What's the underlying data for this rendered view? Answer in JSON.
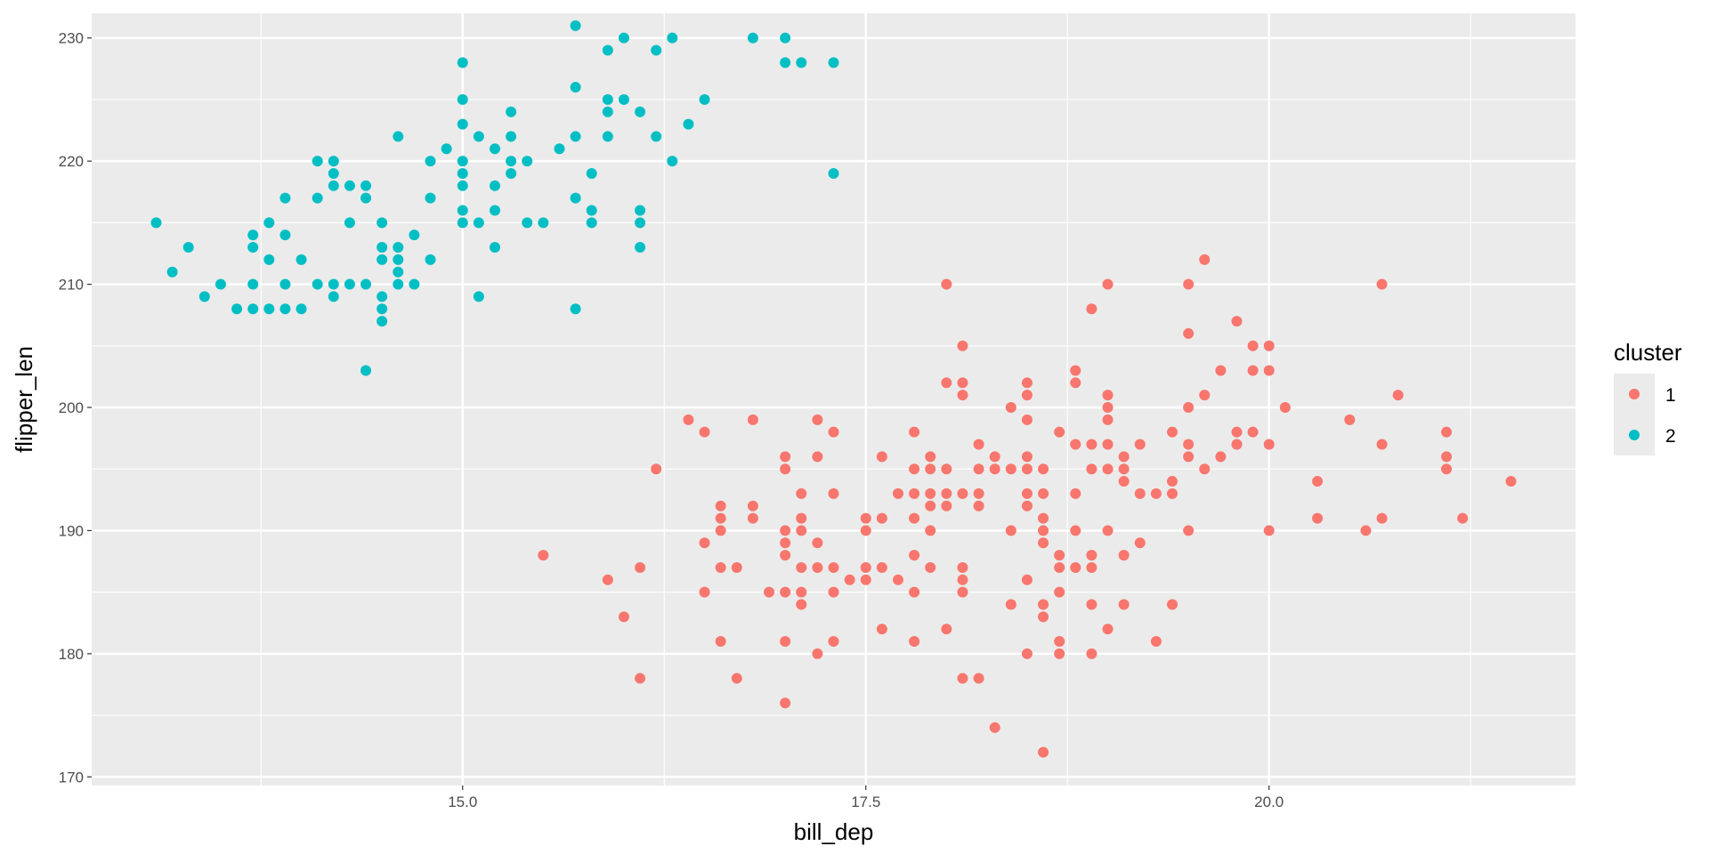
{
  "chart_data": {
    "type": "scatter",
    "title": "",
    "xlabel": "bill_dep",
    "ylabel": "flipper_len",
    "xlim": [
      12.7,
      21.9
    ],
    "ylim": [
      169.3,
      232
    ],
    "x_ticks": [
      15.0,
      17.5,
      20.0
    ],
    "x_tick_labels": [
      "15.0",
      "17.5",
      "20.0"
    ],
    "y_ticks": [
      170,
      180,
      190,
      200,
      210,
      220,
      230
    ],
    "y_tick_labels": [
      "170",
      "180",
      "190",
      "200",
      "210",
      "220",
      "230"
    ],
    "grid": true,
    "legend": {
      "title": "cluster",
      "position": "right"
    },
    "series": [
      {
        "name": "1",
        "color": "#F8766D",
        "points": [
          [
            15.5,
            188
          ],
          [
            15.9,
            186
          ],
          [
            16.0,
            183
          ],
          [
            16.1,
            187
          ],
          [
            16.1,
            178
          ],
          [
            16.2,
            195
          ],
          [
            16.4,
            199
          ],
          [
            16.5,
            198
          ],
          [
            16.5,
            189
          ],
          [
            16.5,
            185
          ],
          [
            16.6,
            192
          ],
          [
            16.6,
            191
          ],
          [
            16.6,
            190
          ],
          [
            16.6,
            187
          ],
          [
            16.6,
            181
          ],
          [
            16.7,
            178
          ],
          [
            16.7,
            187
          ],
          [
            16.8,
            199
          ],
          [
            16.8,
            192
          ],
          [
            16.8,
            191
          ],
          [
            16.9,
            185
          ],
          [
            17.0,
            196
          ],
          [
            17.0,
            195
          ],
          [
            17.0,
            190
          ],
          [
            17.0,
            189
          ],
          [
            17.0,
            188
          ],
          [
            17.0,
            185
          ],
          [
            17.0,
            181
          ],
          [
            17.0,
            176
          ],
          [
            17.1,
            193
          ],
          [
            17.1,
            191
          ],
          [
            17.1,
            190
          ],
          [
            17.1,
            187
          ],
          [
            17.1,
            185
          ],
          [
            17.1,
            184
          ],
          [
            17.2,
            199
          ],
          [
            17.2,
            196
          ],
          [
            17.2,
            189
          ],
          [
            17.2,
            187
          ],
          [
            17.2,
            180
          ],
          [
            17.3,
            198
          ],
          [
            17.3,
            193
          ],
          [
            17.3,
            187
          ],
          [
            17.3,
            185
          ],
          [
            17.3,
            181
          ],
          [
            17.4,
            186
          ],
          [
            17.5,
            191
          ],
          [
            17.5,
            190
          ],
          [
            17.5,
            187
          ],
          [
            17.5,
            186
          ],
          [
            17.6,
            196
          ],
          [
            17.6,
            191
          ],
          [
            17.6,
            187
          ],
          [
            17.6,
            182
          ],
          [
            17.7,
            193
          ],
          [
            17.7,
            186
          ],
          [
            17.8,
            198
          ],
          [
            17.8,
            195
          ],
          [
            17.8,
            193
          ],
          [
            17.8,
            191
          ],
          [
            17.8,
            188
          ],
          [
            17.8,
            185
          ],
          [
            17.8,
            181
          ],
          [
            17.9,
            196
          ],
          [
            17.9,
            195
          ],
          [
            17.9,
            193
          ],
          [
            17.9,
            192
          ],
          [
            17.9,
            190
          ],
          [
            17.9,
            187
          ],
          [
            18.0,
            210
          ],
          [
            18.0,
            202
          ],
          [
            18.0,
            195
          ],
          [
            18.0,
            193
          ],
          [
            18.0,
            192
          ],
          [
            18.0,
            182
          ],
          [
            18.1,
            205
          ],
          [
            18.1,
            202
          ],
          [
            18.1,
            201
          ],
          [
            18.1,
            193
          ],
          [
            18.1,
            187
          ],
          [
            18.1,
            186
          ],
          [
            18.1,
            185
          ],
          [
            18.1,
            178
          ],
          [
            18.2,
            197
          ],
          [
            18.2,
            195
          ],
          [
            18.2,
            193
          ],
          [
            18.2,
            192
          ],
          [
            18.2,
            178
          ],
          [
            18.3,
            196
          ],
          [
            18.3,
            195
          ],
          [
            18.3,
            174
          ],
          [
            18.4,
            200
          ],
          [
            18.4,
            195
          ],
          [
            18.4,
            190
          ],
          [
            18.4,
            184
          ],
          [
            18.5,
            202
          ],
          [
            18.5,
            201
          ],
          [
            18.5,
            199
          ],
          [
            18.5,
            196
          ],
          [
            18.5,
            195
          ],
          [
            18.5,
            193
          ],
          [
            18.5,
            192
          ],
          [
            18.5,
            186
          ],
          [
            18.5,
            180
          ],
          [
            18.6,
            195
          ],
          [
            18.6,
            193
          ],
          [
            18.6,
            191
          ],
          [
            18.6,
            190
          ],
          [
            18.6,
            189
          ],
          [
            18.6,
            184
          ],
          [
            18.6,
            183
          ],
          [
            18.6,
            172
          ],
          [
            18.7,
            198
          ],
          [
            18.7,
            188
          ],
          [
            18.7,
            187
          ],
          [
            18.7,
            185
          ],
          [
            18.7,
            181
          ],
          [
            18.7,
            180
          ],
          [
            18.8,
            203
          ],
          [
            18.8,
            202
          ],
          [
            18.8,
            197
          ],
          [
            18.8,
            193
          ],
          [
            18.8,
            190
          ],
          [
            18.8,
            187
          ],
          [
            18.9,
            208
          ],
          [
            18.9,
            197
          ],
          [
            18.9,
            195
          ],
          [
            18.9,
            188
          ],
          [
            18.9,
            187
          ],
          [
            18.9,
            184
          ],
          [
            18.9,
            180
          ],
          [
            19.0,
            210
          ],
          [
            19.0,
            201
          ],
          [
            19.0,
            200
          ],
          [
            19.0,
            199
          ],
          [
            19.0,
            197
          ],
          [
            19.0,
            195
          ],
          [
            19.0,
            190
          ],
          [
            19.0,
            182
          ],
          [
            19.1,
            196
          ],
          [
            19.1,
            195
          ],
          [
            19.1,
            194
          ],
          [
            19.1,
            188
          ],
          [
            19.1,
            184
          ],
          [
            19.2,
            197
          ],
          [
            19.2,
            193
          ],
          [
            19.2,
            189
          ],
          [
            19.3,
            193
          ],
          [
            19.3,
            181
          ],
          [
            19.4,
            198
          ],
          [
            19.4,
            194
          ],
          [
            19.4,
            193
          ],
          [
            19.4,
            184
          ],
          [
            19.5,
            210
          ],
          [
            19.5,
            206
          ],
          [
            19.5,
            200
          ],
          [
            19.5,
            197
          ],
          [
            19.5,
            196
          ],
          [
            19.5,
            190
          ],
          [
            19.6,
            212
          ],
          [
            19.6,
            201
          ],
          [
            19.6,
            195
          ],
          [
            19.7,
            203
          ],
          [
            19.7,
            196
          ],
          [
            19.8,
            207
          ],
          [
            19.8,
            198
          ],
          [
            19.8,
            197
          ],
          [
            19.9,
            205
          ],
          [
            19.9,
            203
          ],
          [
            19.9,
            198
          ],
          [
            20.0,
            205
          ],
          [
            20.0,
            203
          ],
          [
            20.0,
            197
          ],
          [
            20.0,
            190
          ],
          [
            20.1,
            200
          ],
          [
            20.3,
            194
          ],
          [
            20.3,
            191
          ],
          [
            20.5,
            199
          ],
          [
            20.6,
            190
          ],
          [
            20.7,
            210
          ],
          [
            20.7,
            197
          ],
          [
            20.7,
            191
          ],
          [
            20.8,
            201
          ],
          [
            21.1,
            198
          ],
          [
            21.1,
            196
          ],
          [
            21.1,
            195
          ],
          [
            21.2,
            191
          ],
          [
            21.5,
            194
          ]
        ]
      },
      {
        "name": "2",
        "color": "#00BFC4",
        "points": [
          [
            13.1,
            215
          ],
          [
            13.2,
            211
          ],
          [
            13.3,
            213
          ],
          [
            13.4,
            209
          ],
          [
            13.5,
            210
          ],
          [
            13.6,
            208
          ],
          [
            13.7,
            214
          ],
          [
            13.7,
            213
          ],
          [
            13.7,
            210
          ],
          [
            13.7,
            208
          ],
          [
            13.8,
            215
          ],
          [
            13.8,
            212
          ],
          [
            13.8,
            208
          ],
          [
            13.9,
            217
          ],
          [
            13.9,
            214
          ],
          [
            13.9,
            210
          ],
          [
            13.9,
            208
          ],
          [
            14.0,
            212
          ],
          [
            14.0,
            208
          ],
          [
            14.1,
            220
          ],
          [
            14.1,
            217
          ],
          [
            14.1,
            210
          ],
          [
            14.2,
            220
          ],
          [
            14.2,
            219
          ],
          [
            14.2,
            218
          ],
          [
            14.2,
            210
          ],
          [
            14.2,
            209
          ],
          [
            14.3,
            218
          ],
          [
            14.3,
            215
          ],
          [
            14.3,
            210
          ],
          [
            14.4,
            218
          ],
          [
            14.4,
            217
          ],
          [
            14.4,
            210
          ],
          [
            14.4,
            203
          ],
          [
            14.5,
            215
          ],
          [
            14.5,
            213
          ],
          [
            14.5,
            212
          ],
          [
            14.5,
            209
          ],
          [
            14.5,
            208
          ],
          [
            14.5,
            207
          ],
          [
            14.6,
            222
          ],
          [
            14.6,
            213
          ],
          [
            14.6,
            212
          ],
          [
            14.6,
            211
          ],
          [
            14.6,
            210
          ],
          [
            14.7,
            214
          ],
          [
            14.7,
            210
          ],
          [
            14.8,
            220
          ],
          [
            14.8,
            217
          ],
          [
            14.8,
            212
          ],
          [
            14.9,
            221
          ],
          [
            15.0,
            228
          ],
          [
            15.0,
            225
          ],
          [
            15.0,
            223
          ],
          [
            15.0,
            220
          ],
          [
            15.0,
            219
          ],
          [
            15.0,
            218
          ],
          [
            15.0,
            216
          ],
          [
            15.0,
            215
          ],
          [
            15.1,
            222
          ],
          [
            15.1,
            215
          ],
          [
            15.1,
            209
          ],
          [
            15.2,
            221
          ],
          [
            15.2,
            218
          ],
          [
            15.2,
            216
          ],
          [
            15.2,
            213
          ],
          [
            15.3,
            224
          ],
          [
            15.3,
            222
          ],
          [
            15.3,
            220
          ],
          [
            15.3,
            219
          ],
          [
            15.4,
            220
          ],
          [
            15.4,
            215
          ],
          [
            15.5,
            215
          ],
          [
            15.6,
            221
          ],
          [
            15.7,
            231
          ],
          [
            15.7,
            226
          ],
          [
            15.7,
            222
          ],
          [
            15.7,
            217
          ],
          [
            15.7,
            208
          ],
          [
            15.8,
            219
          ],
          [
            15.8,
            216
          ],
          [
            15.8,
            215
          ],
          [
            15.9,
            229
          ],
          [
            15.9,
            225
          ],
          [
            15.9,
            224
          ],
          [
            15.9,
            222
          ],
          [
            16.0,
            230
          ],
          [
            16.0,
            225
          ],
          [
            16.1,
            224
          ],
          [
            16.1,
            216
          ],
          [
            16.1,
            215
          ],
          [
            16.1,
            213
          ],
          [
            16.2,
            229
          ],
          [
            16.2,
            222
          ],
          [
            16.3,
            230
          ],
          [
            16.3,
            220
          ],
          [
            16.4,
            223
          ],
          [
            16.5,
            225
          ],
          [
            16.8,
            230
          ],
          [
            17.0,
            230
          ],
          [
            17.0,
            228
          ],
          [
            17.1,
            228
          ],
          [
            17.3,
            228
          ],
          [
            17.3,
            219
          ]
        ]
      }
    ]
  }
}
